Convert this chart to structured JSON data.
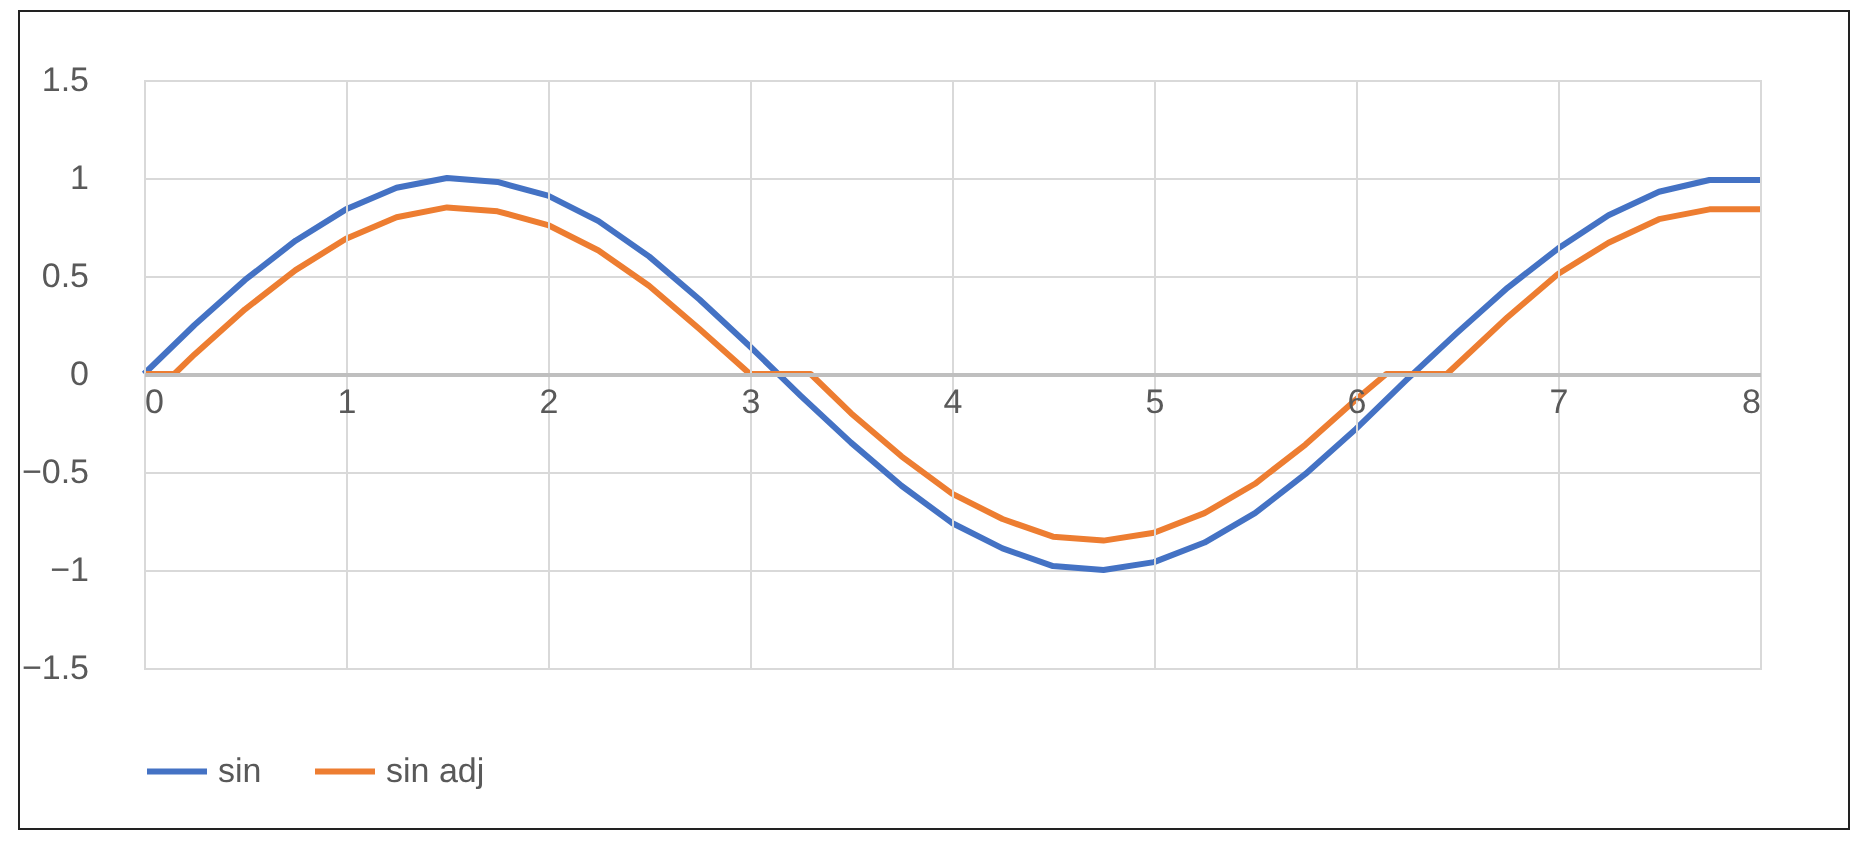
{
  "chart_data": {
    "type": "line",
    "series": [
      {
        "name": "sin",
        "color": "#4472c4",
        "x": [
          0,
          0.25,
          0.5,
          0.75,
          1,
          1.25,
          1.5,
          1.75,
          2,
          2.25,
          2.5,
          2.75,
          3,
          3.25,
          3.5,
          3.75,
          4,
          4.25,
          4.5,
          4.75,
          5,
          5.25,
          5.5,
          5.75,
          6,
          6.25,
          6.5,
          6.75,
          7,
          7.25,
          7.5,
          7.75,
          8
        ],
        "values": [
          0,
          0.25,
          0.48,
          0.68,
          0.84,
          0.95,
          1.0,
          0.98,
          0.91,
          0.78,
          0.6,
          0.38,
          0.14,
          -0.11,
          -0.35,
          -0.57,
          -0.76,
          -0.89,
          -0.98,
          -1.0,
          -0.96,
          -0.86,
          -0.71,
          -0.51,
          -0.28,
          -0.03,
          0.21,
          0.44,
          0.64,
          0.81,
          0.93,
          0.99,
          0.99
        ]
      },
      {
        "name": "sin adj",
        "color": "#ed7d31",
        "x": [
          0,
          0.15,
          0.25,
          0.5,
          0.75,
          1,
          1.25,
          1.5,
          1.75,
          2,
          2.25,
          2.5,
          2.75,
          3,
          3.3,
          3.5,
          3.75,
          4,
          4.25,
          4.5,
          4.75,
          5,
          5.25,
          5.5,
          5.75,
          6,
          6.15,
          6.45,
          6.75,
          7,
          7.25,
          7.5,
          7.75,
          8
        ],
        "values": [
          0,
          0,
          0.1,
          0.33,
          0.53,
          0.69,
          0.8,
          0.85,
          0.83,
          0.76,
          0.63,
          0.45,
          0.23,
          0,
          0,
          -0.2,
          -0.42,
          -0.61,
          -0.74,
          -0.83,
          -0.85,
          -0.81,
          -0.71,
          -0.56,
          -0.36,
          -0.13,
          0,
          0,
          0.29,
          0.51,
          0.67,
          0.79,
          0.84,
          0.84
        ]
      }
    ],
    "xlim": [
      0,
      8
    ],
    "xticks": [
      0,
      1,
      2,
      3,
      4,
      5,
      6,
      7,
      8
    ],
    "ylim": [
      -1.5,
      1.5
    ],
    "yticks": [
      -1.5,
      -1,
      -0.5,
      0,
      0.5,
      1,
      1.5
    ],
    "grid": true,
    "legend": "bottom"
  }
}
